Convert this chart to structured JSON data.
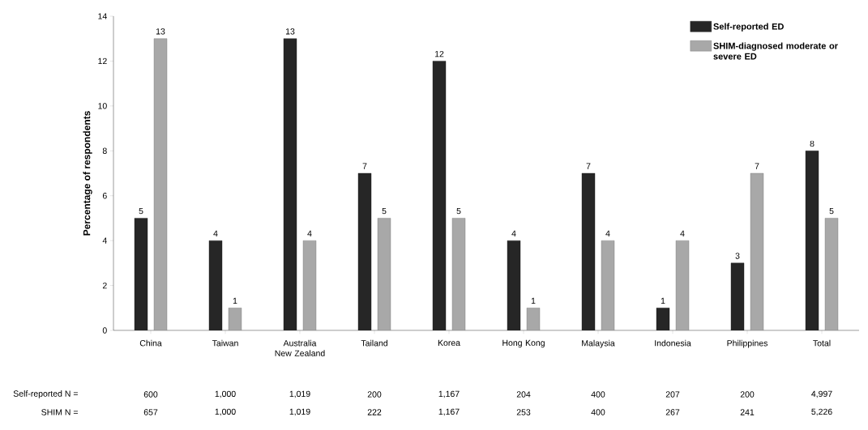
{
  "chart_data": {
    "type": "bar",
    "ylabel": "Percentage of respondents",
    "categories": [
      "China",
      "Taiwan",
      "Australia New Zealand",
      "Tailand",
      "Korea",
      "Hong Kong",
      "Malaysia",
      "Indonesia",
      "Philippines",
      "Total"
    ],
    "series": [
      {
        "name": "Self-reported ED",
        "color": "#262626",
        "values": [
          5,
          4,
          13,
          7,
          12,
          4,
          7,
          1,
          3,
          8
        ]
      },
      {
        "name": "SHIM-diagnosed moderate or severe ED",
        "color": "#a8a8a8",
        "values": [
          13,
          1,
          4,
          5,
          5,
          1,
          4,
          4,
          7,
          5
        ]
      }
    ],
    "ylim": [
      0,
      14
    ],
    "yticks": [
      0,
      2,
      4,
      6,
      8,
      10,
      12,
      14
    ],
    "data_labels": true,
    "legend": "top right",
    "grid": false,
    "annotations": [
      "Self-reported N =",
      "600",
      "1,000",
      "1,019",
      "200",
      "1,167",
      "204",
      "400",
      "207",
      "200",
      "4,997",
      "SHIM N =",
      "657",
      "1,000",
      "1,019",
      "222",
      "1,167",
      "253",
      "400",
      "267",
      "241",
      "5,226"
    ]
  }
}
